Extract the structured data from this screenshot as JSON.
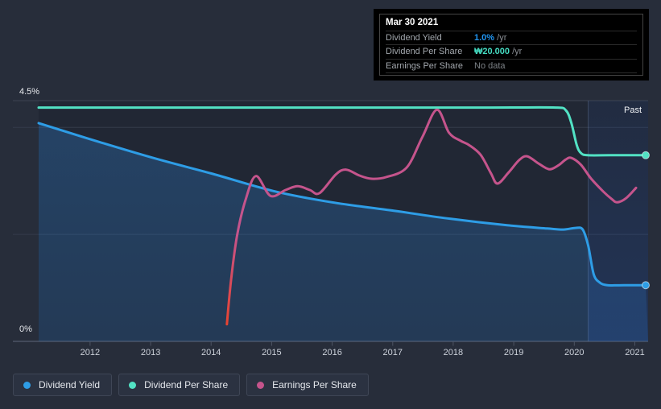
{
  "tooltip": {
    "date": "Mar 30 2021",
    "rows": [
      {
        "label": "Dividend Yield",
        "value": "1.0%",
        "unit": " /yr",
        "value_color": "#2196f3"
      },
      {
        "label": "Dividend Per Share",
        "value": "₩20.000",
        "unit": " /yr",
        "value_color": "#45dcc2"
      },
      {
        "label": "Earnings Per Share",
        "value": "No data",
        "unit": "",
        "value_color": "#7d8287"
      }
    ]
  },
  "legend": {
    "items": [
      {
        "label": "Dividend Yield",
        "color": "#2e9de6"
      },
      {
        "label": "Dividend Per Share",
        "color": "#52e2c4"
      },
      {
        "label": "Earnings Per Share",
        "color": "#c5548c"
      }
    ]
  },
  "chart_data": {
    "type": "line",
    "title": "Dividend history chart",
    "x_axis": {
      "min": 2011.15,
      "max": 2021.22,
      "ticks": [
        {
          "label": "2012",
          "year": 2012
        },
        {
          "label": "2013",
          "year": 2013
        },
        {
          "label": "2014",
          "year": 2014
        },
        {
          "label": "2015",
          "year": 2015
        },
        {
          "label": "2016",
          "year": 2016
        },
        {
          "label": "2017",
          "year": 2017
        },
        {
          "label": "2018",
          "year": 2018
        },
        {
          "label": "2019",
          "year": 2019
        },
        {
          "label": "2020",
          "year": 2020
        },
        {
          "label": "2021",
          "year": 2021
        }
      ]
    },
    "y_axis": {
      "min": 0,
      "max": 4.5,
      "unit": "%",
      "labels": [
        {
          "text": "4.5%",
          "value": 4.5
        },
        {
          "text": "0%",
          "value": 0
        }
      ],
      "gridlines": [
        4.5,
        4.0,
        2.0,
        0
      ]
    },
    "past_region": {
      "label": "Past",
      "start": 2020.23
    },
    "series": [
      {
        "name": "Dividend Yield",
        "color": "#2e9de6",
        "area_fill": true,
        "end_dot": true,
        "points": [
          [
            2011.15,
            4.08
          ],
          [
            2011.97,
            3.79
          ],
          [
            2013.04,
            3.43
          ],
          [
            2014.03,
            3.13
          ],
          [
            2015.03,
            2.81
          ],
          [
            2015.99,
            2.6
          ],
          [
            2017.03,
            2.44
          ],
          [
            2017.96,
            2.29
          ],
          [
            2018.89,
            2.17
          ],
          [
            2019.55,
            2.11
          ],
          [
            2019.82,
            2.09
          ],
          [
            2020.02,
            2.12
          ],
          [
            2020.14,
            2.09
          ],
          [
            2020.23,
            1.79
          ],
          [
            2020.32,
            1.26
          ],
          [
            2020.42,
            1.1
          ],
          [
            2020.55,
            1.05
          ],
          [
            2020.82,
            1.05
          ],
          [
            2021.18,
            1.05
          ]
        ]
      },
      {
        "name": "Dividend Per Share",
        "color": "#52e2c4",
        "area_fill": false,
        "end_dot": true,
        "points": [
          [
            2011.15,
            4.37
          ],
          [
            2015.0,
            4.37
          ],
          [
            2018.5,
            4.37
          ],
          [
            2019.7,
            4.37
          ],
          [
            2019.86,
            4.32
          ],
          [
            2019.95,
            4.09
          ],
          [
            2020.04,
            3.67
          ],
          [
            2020.11,
            3.52
          ],
          [
            2020.22,
            3.48
          ],
          [
            2020.6,
            3.48
          ],
          [
            2021.18,
            3.48
          ]
        ]
      },
      {
        "name": "Earnings Per Share",
        "color": "#c5548c",
        "start_color": "#e8432f",
        "area_fill": false,
        "end_dot": false,
        "points": [
          [
            2014.26,
            0.32
          ],
          [
            2014.33,
            1.16
          ],
          [
            2014.43,
            1.99
          ],
          [
            2014.57,
            2.65
          ],
          [
            2014.74,
            3.09
          ],
          [
            2014.98,
            2.72
          ],
          [
            2015.23,
            2.83
          ],
          [
            2015.43,
            2.9
          ],
          [
            2015.63,
            2.83
          ],
          [
            2015.79,
            2.77
          ],
          [
            2016.06,
            3.12
          ],
          [
            2016.23,
            3.21
          ],
          [
            2016.45,
            3.1
          ],
          [
            2016.65,
            3.04
          ],
          [
            2016.89,
            3.07
          ],
          [
            2017.23,
            3.25
          ],
          [
            2017.49,
            3.82
          ],
          [
            2017.73,
            4.33
          ],
          [
            2017.93,
            3.9
          ],
          [
            2018.12,
            3.75
          ],
          [
            2018.26,
            3.67
          ],
          [
            2018.45,
            3.49
          ],
          [
            2018.62,
            3.15
          ],
          [
            2018.73,
            2.95
          ],
          [
            2018.91,
            3.15
          ],
          [
            2019.09,
            3.39
          ],
          [
            2019.22,
            3.46
          ],
          [
            2019.39,
            3.34
          ],
          [
            2019.53,
            3.24
          ],
          [
            2019.62,
            3.22
          ],
          [
            2019.75,
            3.3
          ],
          [
            2019.86,
            3.4
          ],
          [
            2019.95,
            3.43
          ],
          [
            2020.11,
            3.3
          ],
          [
            2020.28,
            3.04
          ],
          [
            2020.48,
            2.8
          ],
          [
            2020.62,
            2.66
          ],
          [
            2020.71,
            2.6
          ],
          [
            2020.86,
            2.68
          ],
          [
            2021.02,
            2.87
          ]
        ]
      }
    ]
  }
}
